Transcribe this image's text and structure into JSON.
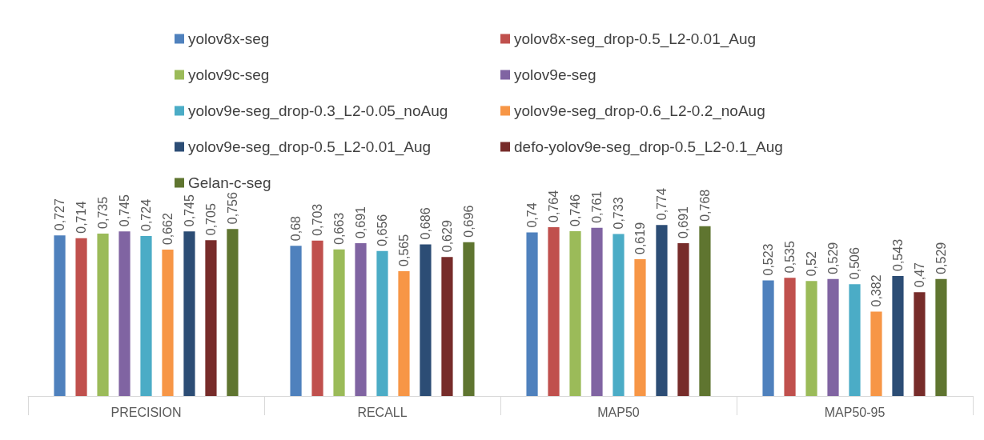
{
  "chart_data": {
    "type": "bar",
    "categories": [
      "PRECISION",
      "RECALL",
      "MAP50",
      "MAP50-95"
    ],
    "tick_labels": "x",
    "legend": "top",
    "series": [
      {
        "name": "yolov8x-seg",
        "color": "#4f81bd",
        "values": [
          0.727,
          0.68,
          0.74,
          0.523
        ],
        "value_labels": [
          "0,727",
          "0,68",
          "0,74",
          "0,523"
        ]
      },
      {
        "name": "yolov8x-seg_drop-0.5_L2-0.01_Aug",
        "color": "#c0504d",
        "values": [
          0.714,
          0.703,
          0.764,
          0.535
        ],
        "value_labels": [
          "0,714",
          "0,703",
          "0,764",
          "0,535"
        ]
      },
      {
        "name": "yolov9c-seg",
        "color": "#9bbb59",
        "values": [
          0.735,
          0.663,
          0.746,
          0.52
        ],
        "value_labels": [
          "0,735",
          "0,663",
          "0,746",
          "0,52"
        ]
      },
      {
        "name": "yolov9e-seg",
        "color": "#8064a2",
        "values": [
          0.745,
          0.691,
          0.761,
          0.529
        ],
        "value_labels": [
          "0,745",
          "0,691",
          "0,761",
          "0,529"
        ]
      },
      {
        "name": "yolov9e-seg_drop-0.3_L2-0.05_noAug",
        "color": "#4bacc6",
        "values": [
          0.724,
          0.656,
          0.733,
          0.506
        ],
        "value_labels": [
          "0,724",
          "0,656",
          "0,733",
          "0,506"
        ]
      },
      {
        "name": "yolov9e-seg_drop-0.6_L2-0.2_noAug",
        "color": "#f79646",
        "values": [
          0.662,
          0.565,
          0.619,
          0.382
        ],
        "value_labels": [
          "0,662",
          "0,565",
          "0,619",
          "0,382"
        ]
      },
      {
        "name": "yolov9e-seg_drop-0.5_L2-0.01_Aug",
        "color": "#2c4d75",
        "values": [
          0.745,
          0.686,
          0.774,
          0.543
        ],
        "value_labels": [
          "0,745",
          "0,686",
          "0,774",
          "0,543"
        ]
      },
      {
        "name": "defo-yolov9e-seg_drop-0.5_L2-0.1_Aug",
        "color": "#772c2a",
        "values": [
          0.705,
          0.629,
          0.691,
          0.47
        ],
        "value_labels": [
          "0,705",
          "0,629",
          "0,691",
          "0,47"
        ]
      },
      {
        "name": "Gelan-c-seg",
        "color": "#5f7530",
        "values": [
          0.756,
          0.696,
          0.768,
          0.529
        ],
        "value_labels": [
          "0,756",
          "0,696",
          "0,768",
          "0,529"
        ]
      }
    ]
  }
}
